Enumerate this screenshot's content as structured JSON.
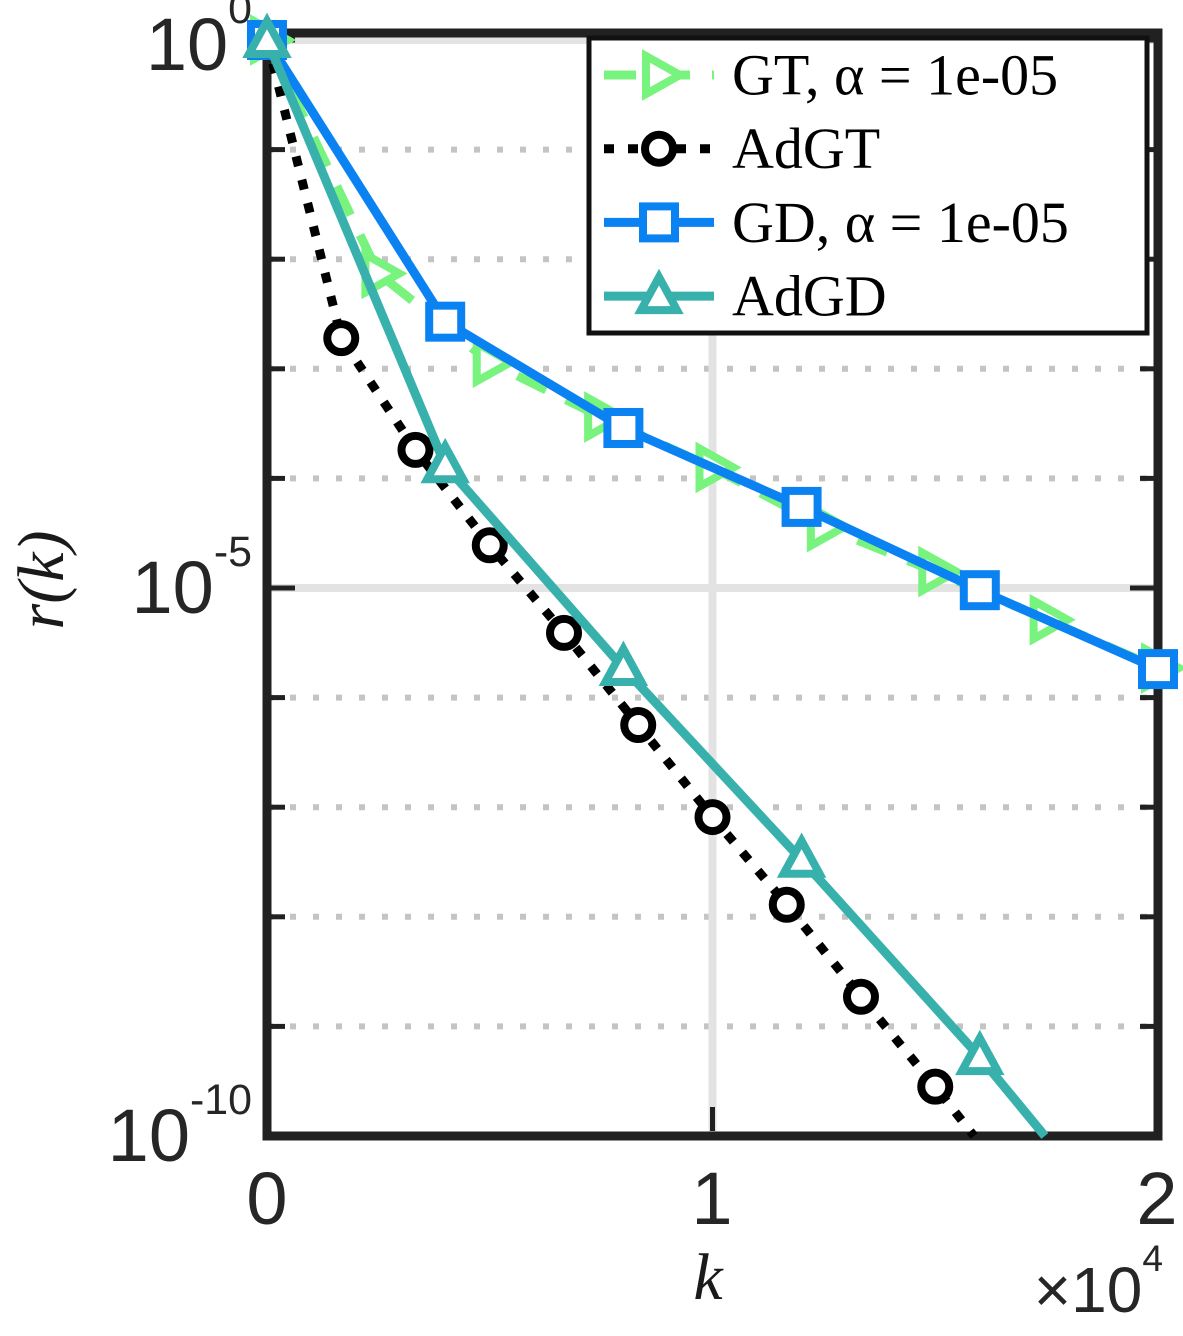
{
  "chart_data": {
    "type": "line",
    "title": "",
    "xlabel": "k",
    "ylabel": "r(k)",
    "y_scale": "log10",
    "xlim": [
      0,
      20000
    ],
    "ylim_log10": [
      -10,
      0
    ],
    "x_ticks": [
      {
        "label": "0",
        "value": 0
      },
      {
        "label": "1",
        "value": 10000
      },
      {
        "label": "2",
        "value": 20000
      }
    ],
    "x_multiplier": {
      "base": "×10",
      "exp": "4"
    },
    "y_ticks": [
      {
        "base": "10",
        "exp": "0",
        "log10": 0
      },
      {
        "base": "10",
        "exp": "-5",
        "log10": -5
      },
      {
        "base": "10",
        "exp": "-10",
        "log10": -10
      }
    ],
    "grid": {
      "y_major_decades": [
        0,
        -5,
        -10
      ],
      "y_minor_decades": [
        -1,
        -2,
        -3,
        -4,
        -6,
        -7,
        -8,
        -9
      ],
      "x_gridlines": [
        10000
      ],
      "major_style": "solid",
      "minor_style": "dotted"
    },
    "colors": {
      "axis": "#212121",
      "tick_label": "#262626",
      "grid_major": "#E3E3E3",
      "grid_minor": "#C4C4C4",
      "legend_border": "#111111",
      "background": "#ffffff"
    },
    "legend": {
      "position": "northeast"
    },
    "series": [
      {
        "id": "gt",
        "name": "GT, α = 1e-05",
        "color": "#78F37E",
        "line_style": "dashed",
        "marker": "triangle-right",
        "marker_fill": "#ffffff",
        "x": [
          0,
          2500,
          5000,
          7500,
          10000,
          12500,
          15000,
          17500,
          20000
        ],
        "log10_r": [
          0,
          -2.13,
          -2.94,
          -3.44,
          -3.9,
          -4.44,
          -4.85,
          -5.29,
          -5.73
        ],
        "marker_x": [
          0,
          2500,
          5000,
          7500,
          10000,
          12500,
          15000,
          17500,
          20000
        ],
        "marker_log10_r": [
          0,
          -2.13,
          -2.94,
          -3.44,
          -3.9,
          -4.44,
          -4.85,
          -5.29,
          -5.73
        ]
      },
      {
        "id": "adgt",
        "name": "AdGT",
        "color": "#000000",
        "line_style": "dotted",
        "marker": "circle",
        "marker_fill": "#ffffff",
        "x": [
          0,
          1667,
          3333,
          5000,
          6667,
          8333,
          10000,
          11667,
          13333,
          15000,
          15870
        ],
        "log10_r": [
          0,
          -2.72,
          -3.74,
          -4.61,
          -5.41,
          -6.25,
          -7.09,
          -7.89,
          -8.73,
          -9.55,
          -10
        ],
        "marker_x": [
          0,
          1667,
          3333,
          5000,
          6667,
          8333,
          10000,
          11667,
          13333,
          15000
        ],
        "marker_log10_r": [
          0,
          -2.72,
          -3.74,
          -4.61,
          -5.41,
          -6.25,
          -7.09,
          -7.89,
          -8.73,
          -9.55
        ]
      },
      {
        "id": "gd",
        "name": "GD, α = 1e-05",
        "color": "#0A82F2",
        "line_style": "solid",
        "marker": "square",
        "marker_fill": "#ffffff",
        "x": [
          0,
          4000,
          8000,
          12000,
          16000,
          20000
        ],
        "log10_r": [
          0,
          -2.57,
          -3.54,
          -4.26,
          -5.02,
          -5.74
        ],
        "marker_x": [
          0,
          4000,
          8000,
          12000,
          16000,
          20000
        ],
        "marker_log10_r": [
          0,
          -2.57,
          -3.54,
          -4.26,
          -5.02,
          -5.74
        ]
      },
      {
        "id": "adgd",
        "name": "AdGD",
        "color": "#38B1AD",
        "line_style": "solid",
        "marker": "triangle-up",
        "marker_fill": "#ffffff",
        "x": [
          0,
          4000,
          8000,
          12000,
          16000,
          17460
        ],
        "log10_r": [
          0,
          -3.88,
          -5.73,
          -7.48,
          -9.28,
          -10
        ],
        "marker_x": [
          0,
          4000,
          8000,
          12000,
          16000
        ],
        "marker_log10_r": [
          0,
          -3.88,
          -5.73,
          -7.48,
          -9.28
        ]
      }
    ]
  }
}
